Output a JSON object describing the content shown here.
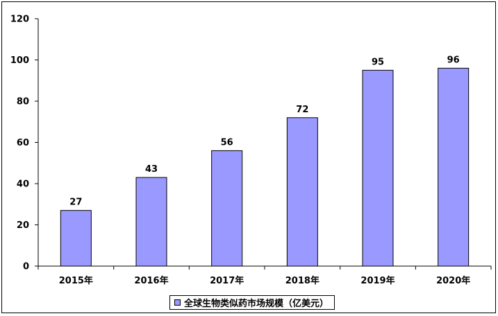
{
  "chart_data": {
    "type": "bar",
    "categories": [
      "2015年",
      "2016年",
      "2017年",
      "2018年",
      "2019年",
      "2020年"
    ],
    "series": [
      {
        "name": "全球生物类似药市场规模（亿美元）",
        "values": [
          27,
          43,
          56,
          72,
          95,
          96
        ]
      }
    ],
    "data_labels": [
      "27",
      "43",
      "56",
      "72",
      "95",
      "96"
    ],
    "ylim": [
      0,
      120
    ],
    "yticks": [
      0,
      20,
      40,
      60,
      80,
      100,
      120
    ],
    "ytick_labels": [
      "0",
      "20",
      "40",
      "60",
      "80",
      "100",
      "120"
    ],
    "grid": false,
    "legend_position": "bottom",
    "bar_color": "#9999ff",
    "title": "",
    "xlabel": "",
    "ylabel": ""
  }
}
